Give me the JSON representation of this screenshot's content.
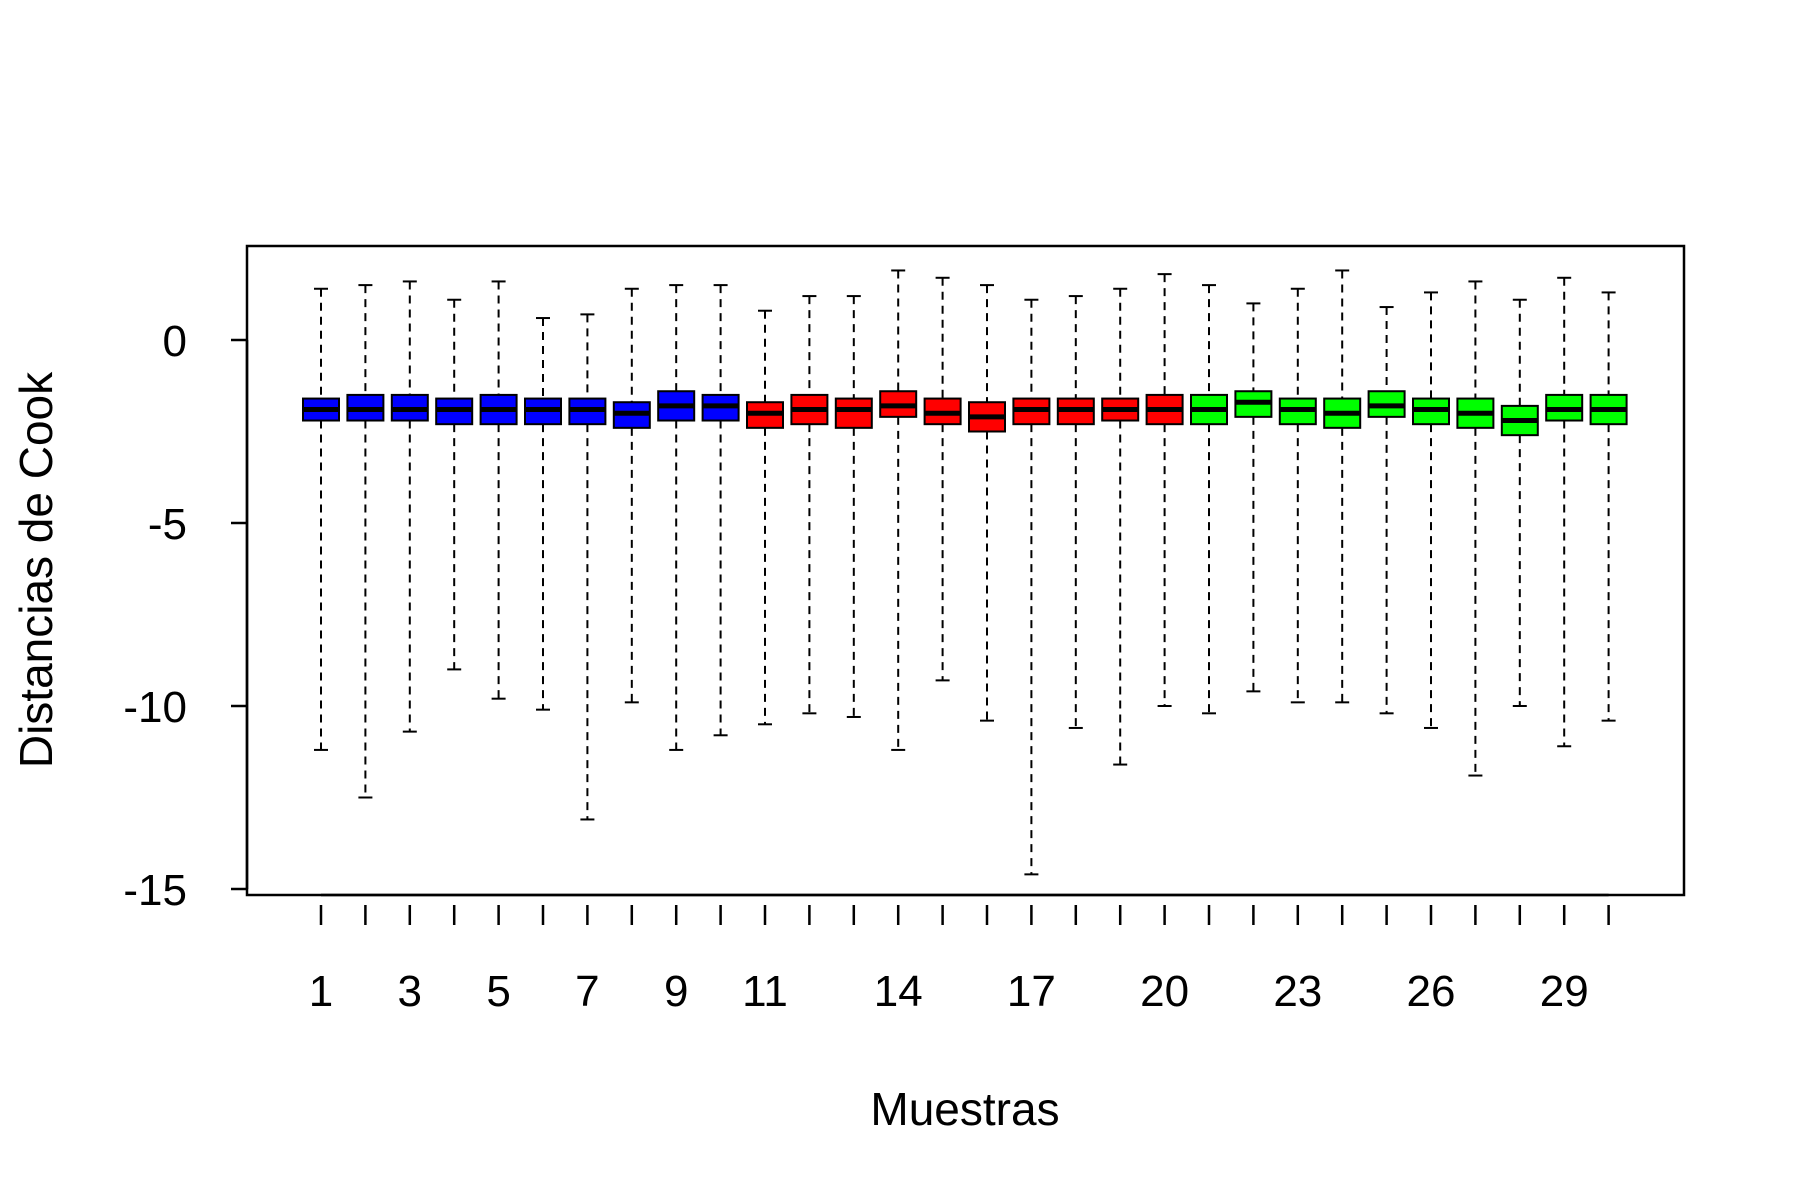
{
  "chart_data": {
    "type": "boxplot",
    "xlabel": "Muestras",
    "ylabel": "Distancias de Cook",
    "ylim": [
      -15.8,
      2.6
    ],
    "yticks": [
      0,
      -5,
      -10,
      -15
    ],
    "xtick_labels": [
      "1",
      "3",
      "5",
      "7",
      "9",
      "11",
      "14",
      "17",
      "20",
      "23",
      "26",
      "29"
    ],
    "xtick_positions": [
      1,
      3,
      5,
      7,
      9,
      11,
      14,
      17,
      20,
      23,
      26,
      29
    ],
    "grid": false,
    "legend": "none",
    "group_colors": {
      "blue": "#0000ff",
      "red": "#ff0000",
      "green": "#00ff00"
    },
    "boxes": [
      {
        "x": 1,
        "color": "#0000ff",
        "low": -11.2,
        "q1": -2.2,
        "median": -1.9,
        "q3": -1.6,
        "high": 1.4
      },
      {
        "x": 2,
        "color": "#0000ff",
        "low": -12.5,
        "q1": -2.2,
        "median": -1.9,
        "q3": -1.5,
        "high": 1.5
      },
      {
        "x": 3,
        "color": "#0000ff",
        "low": -10.7,
        "q1": -2.2,
        "median": -1.9,
        "q3": -1.5,
        "high": 1.6
      },
      {
        "x": 4,
        "color": "#0000ff",
        "low": -9.0,
        "q1": -2.3,
        "median": -1.9,
        "q3": -1.6,
        "high": 1.1
      },
      {
        "x": 5,
        "color": "#0000ff",
        "low": -9.8,
        "q1": -2.3,
        "median": -1.9,
        "q3": -1.5,
        "high": 1.6
      },
      {
        "x": 6,
        "color": "#0000ff",
        "low": -10.1,
        "q1": -2.3,
        "median": -1.9,
        "q3": -1.6,
        "high": 0.6
      },
      {
        "x": 7,
        "color": "#0000ff",
        "low": -13.1,
        "q1": -2.3,
        "median": -1.9,
        "q3": -1.6,
        "high": 0.7
      },
      {
        "x": 8,
        "color": "#0000ff",
        "low": -9.9,
        "q1": -2.4,
        "median": -2.0,
        "q3": -1.7,
        "high": 1.4
      },
      {
        "x": 9,
        "color": "#0000ff",
        "low": -11.2,
        "q1": -2.2,
        "median": -1.8,
        "q3": -1.4,
        "high": 1.5
      },
      {
        "x": 10,
        "color": "#0000ff",
        "low": -10.8,
        "q1": -2.2,
        "median": -1.8,
        "q3": -1.5,
        "high": 1.5
      },
      {
        "x": 11,
        "color": "#ff0000",
        "low": -10.5,
        "q1": -2.4,
        "median": -2.0,
        "q3": -1.7,
        "high": 0.8
      },
      {
        "x": 12,
        "color": "#ff0000",
        "low": -10.2,
        "q1": -2.3,
        "median": -1.9,
        "q3": -1.5,
        "high": 1.2
      },
      {
        "x": 13,
        "color": "#ff0000",
        "low": -10.3,
        "q1": -2.4,
        "median": -1.9,
        "q3": -1.6,
        "high": 1.2
      },
      {
        "x": 14,
        "color": "#ff0000",
        "low": -11.2,
        "q1": -2.1,
        "median": -1.8,
        "q3": -1.4,
        "high": 1.9
      },
      {
        "x": 15,
        "color": "#ff0000",
        "low": -9.3,
        "q1": -2.3,
        "median": -2.0,
        "q3": -1.6,
        "high": 1.7
      },
      {
        "x": 16,
        "color": "#ff0000",
        "low": -10.4,
        "q1": -2.5,
        "median": -2.1,
        "q3": -1.7,
        "high": 1.5
      },
      {
        "x": 17,
        "color": "#ff0000",
        "low": -14.6,
        "q1": -2.3,
        "median": -1.9,
        "q3": -1.6,
        "high": 1.1
      },
      {
        "x": 18,
        "color": "#ff0000",
        "low": -10.6,
        "q1": -2.3,
        "median": -1.9,
        "q3": -1.6,
        "high": 1.2
      },
      {
        "x": 19,
        "color": "#ff0000",
        "low": -11.6,
        "q1": -2.2,
        "median": -1.9,
        "q3": -1.6,
        "high": 1.4
      },
      {
        "x": 20,
        "color": "#ff0000",
        "low": -10.0,
        "q1": -2.3,
        "median": -1.9,
        "q3": -1.5,
        "high": 1.8
      },
      {
        "x": 21,
        "color": "#00ff00",
        "low": -10.2,
        "q1": -2.3,
        "median": -1.9,
        "q3": -1.5,
        "high": 1.5
      },
      {
        "x": 22,
        "color": "#00ff00",
        "low": -9.6,
        "q1": -2.1,
        "median": -1.7,
        "q3": -1.4,
        "high": 1.0
      },
      {
        "x": 23,
        "color": "#00ff00",
        "low": -9.9,
        "q1": -2.3,
        "median": -1.9,
        "q3": -1.6,
        "high": 1.4
      },
      {
        "x": 24,
        "color": "#00ff00",
        "low": -9.9,
        "q1": -2.4,
        "median": -2.0,
        "q3": -1.6,
        "high": 1.9
      },
      {
        "x": 25,
        "color": "#00ff00",
        "low": -10.2,
        "q1": -2.1,
        "median": -1.8,
        "q3": -1.4,
        "high": 0.9
      },
      {
        "x": 26,
        "color": "#00ff00",
        "low": -10.6,
        "q1": -2.3,
        "median": -1.9,
        "q3": -1.6,
        "high": 1.3
      },
      {
        "x": 27,
        "color": "#00ff00",
        "low": -11.9,
        "q1": -2.4,
        "median": -2.0,
        "q3": -1.6,
        "high": 1.6
      },
      {
        "x": 28,
        "color": "#00ff00",
        "low": -10.0,
        "q1": -2.6,
        "median": -2.2,
        "q3": -1.8,
        "high": 1.1
      },
      {
        "x": 29,
        "color": "#00ff00",
        "low": -11.1,
        "q1": -2.2,
        "median": -1.9,
        "q3": -1.5,
        "high": 1.7
      },
      {
        "x": 30,
        "color": "#00ff00",
        "low": -10.4,
        "q1": -2.3,
        "median": -1.9,
        "q3": -1.5,
        "high": 1.3
      }
    ]
  }
}
